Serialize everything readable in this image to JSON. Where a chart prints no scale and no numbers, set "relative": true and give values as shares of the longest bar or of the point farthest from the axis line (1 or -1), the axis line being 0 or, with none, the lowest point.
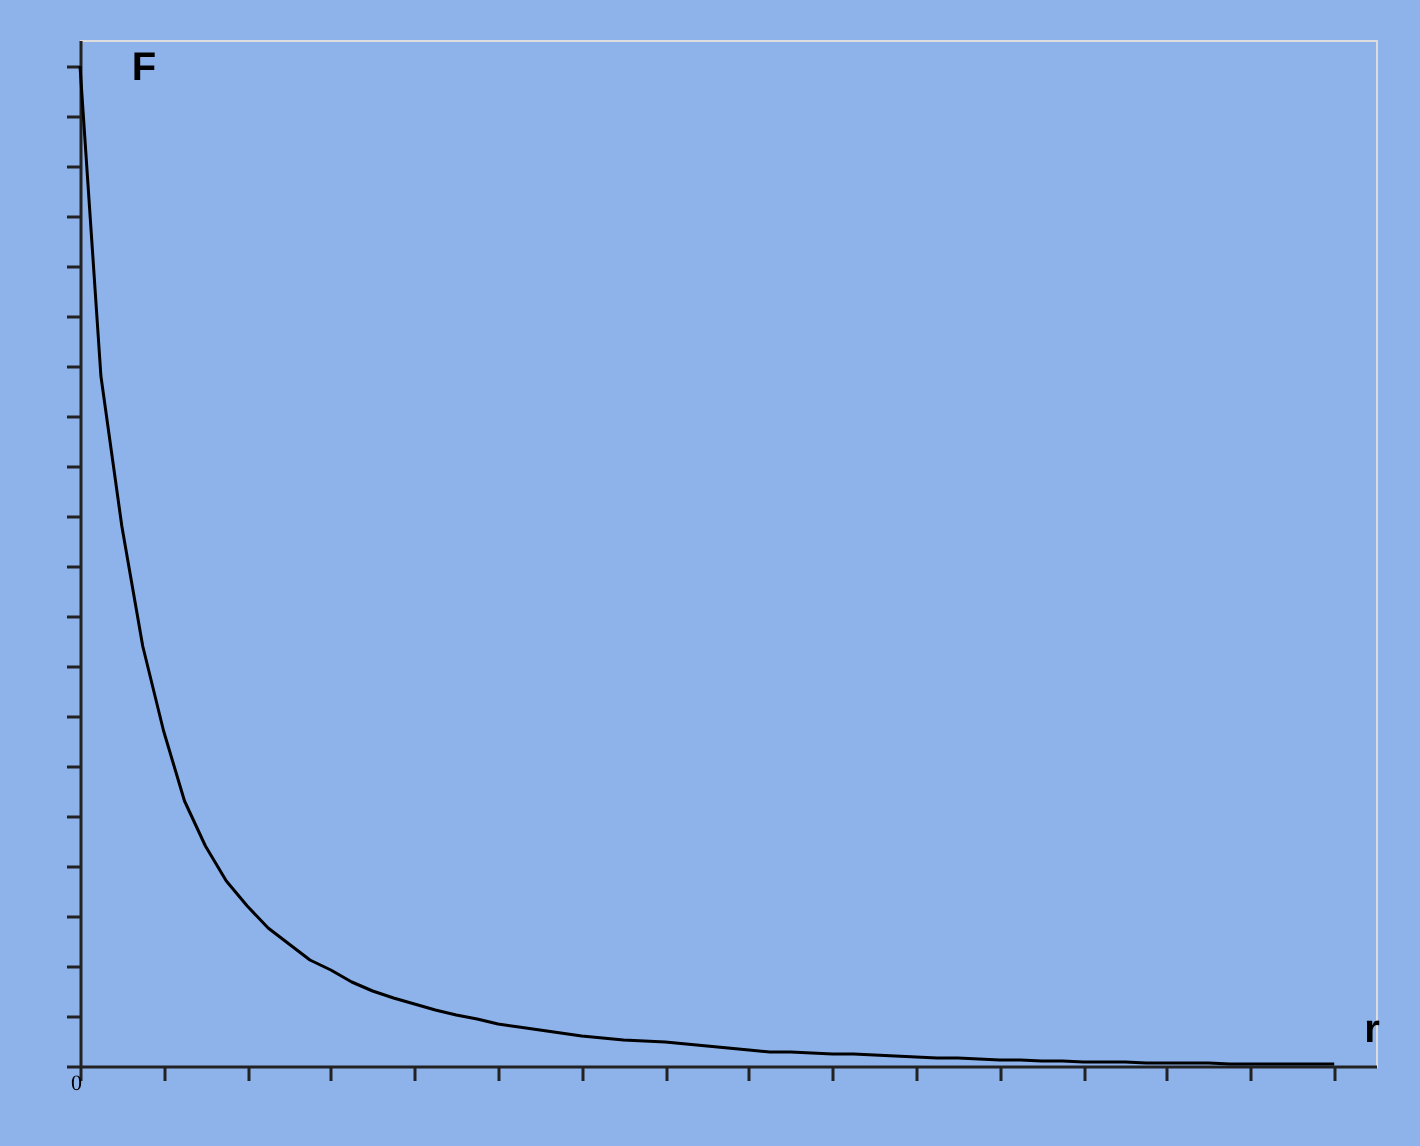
{
  "chart_data": {
    "type": "line",
    "relative": true,
    "xlabel": "r",
    "ylabel": "F",
    "annotations": [
      "0"
    ],
    "color": "#000000",
    "grid": false,
    "marker": "none",
    "categories": [
      null,
      null,
      null,
      null,
      null,
      null,
      null,
      null,
      null,
      null,
      null,
      null,
      null,
      null,
      null,
      null,
      null,
      null,
      null,
      null,
      null,
      null,
      null,
      null,
      null,
      null,
      null,
      null,
      null,
      null,
      null,
      null,
      null,
      null,
      null,
      null,
      null,
      null,
      null,
      null,
      null,
      null,
      null,
      null,
      null,
      null,
      null,
      null,
      null,
      null,
      null,
      null,
      null,
      null,
      null,
      null,
      null,
      null,
      null,
      null,
      null,
      null,
      null
    ],
    "values": [
      1.0,
      0.69,
      0.54,
      0.42,
      0.335,
      0.265,
      0.22,
      0.185,
      0.16,
      0.138,
      0.122,
      0.106,
      0.096,
      0.084,
      0.075,
      0.068,
      0.062,
      0.056,
      0.051,
      0.047,
      0.042,
      0.039,
      0.036,
      0.033,
      0.03,
      0.028,
      0.026,
      0.025,
      0.024,
      0.022,
      0.02,
      0.018,
      0.016,
      0.014,
      0.014,
      0.013,
      0.012,
      0.012,
      0.011,
      0.01,
      0.009,
      0.008,
      0.008,
      0.007,
      0.006,
      0.006,
      0.005,
      0.005,
      0.004,
      0.004,
      0.004,
      0.003,
      0.003,
      0.003,
      0.003,
      0.002,
      0.002,
      0.002,
      0.002,
      0.002,
      0.002,
      null,
      null
    ]
  }
}
